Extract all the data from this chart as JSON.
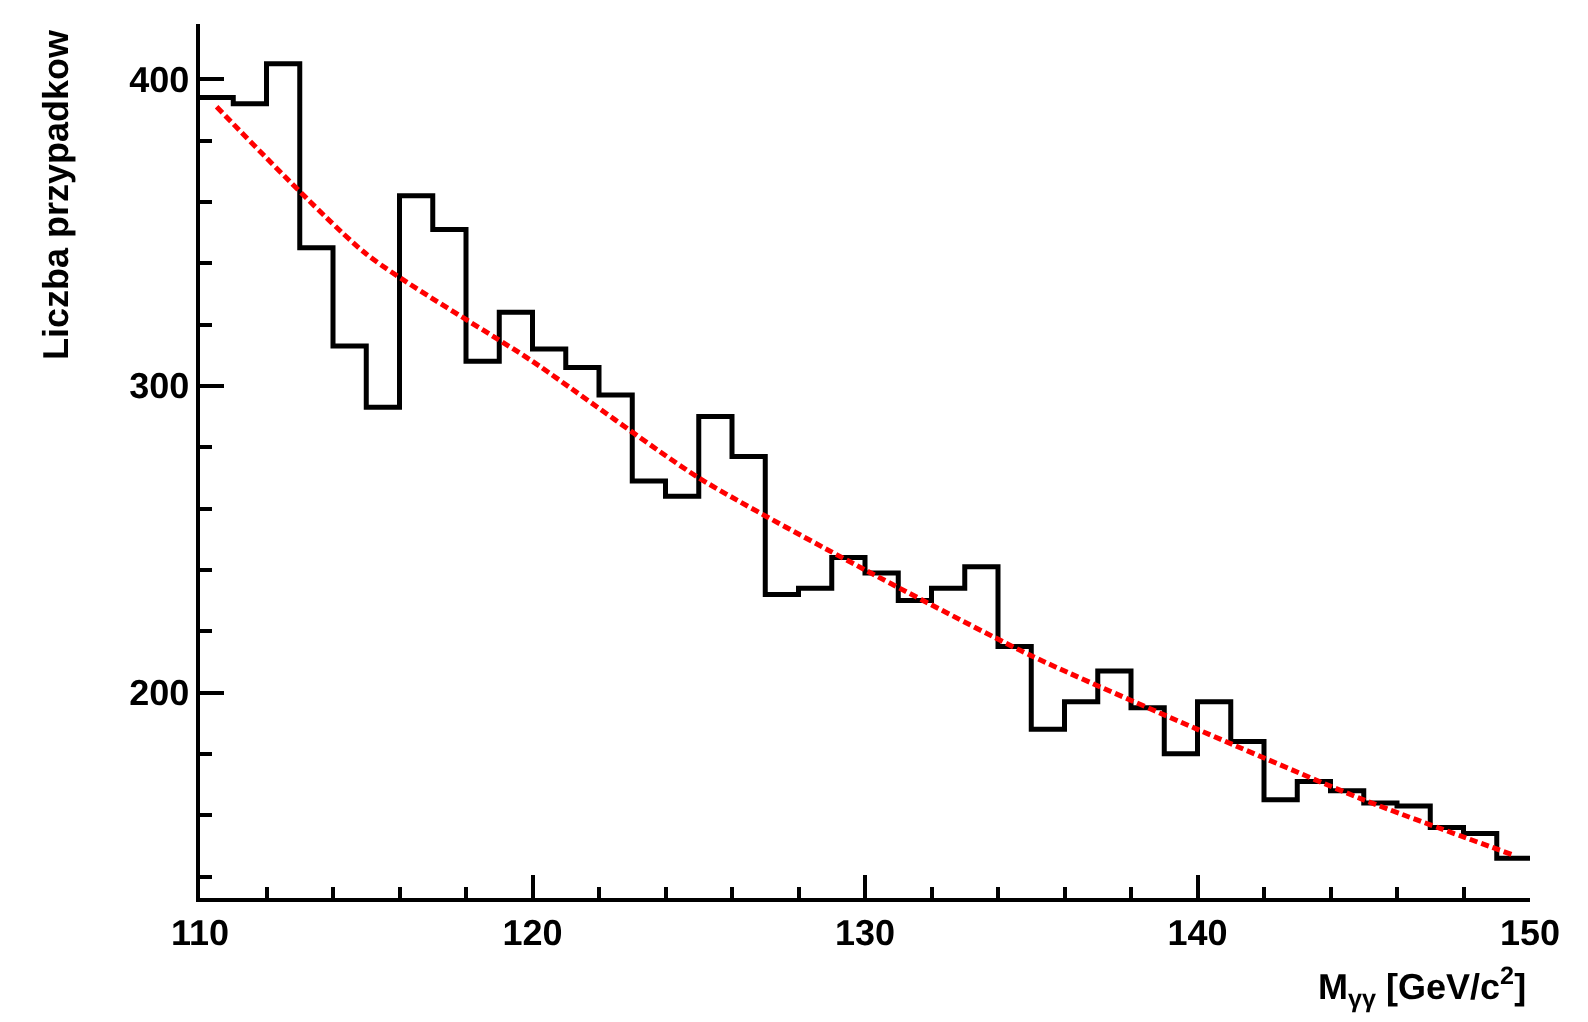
{
  "chart_data": {
    "type": "histogram",
    "xlabel": "M$_{γγ}$ [GeV/c$^{2}$]",
    "ylabel": "Liczba przypadkow",
    "color": "#000000",
    "bins": [
      110,
      111,
      112,
      113,
      114,
      115,
      116,
      117,
      118,
      119,
      120,
      121,
      122,
      123,
      124,
      125,
      126,
      127,
      128,
      129,
      130,
      131,
      132,
      133,
      134,
      135,
      136,
      137,
      138,
      139,
      140,
      141,
      142,
      143,
      144,
      145,
      146,
      147,
      148,
      149,
      150
    ],
    "values": [
      394,
      392,
      405,
      345,
      313,
      293,
      362,
      351,
      308,
      324,
      312,
      306,
      297,
      269,
      264,
      290,
      277,
      232,
      234,
      244,
      239,
      230,
      234,
      241,
      215,
      188,
      197,
      207,
      195,
      180,
      197,
      184,
      165,
      171,
      168,
      164,
      163,
      156,
      154,
      146
    ],
    "series": [
      {
        "type": "line",
        "color": "#ff0000",
        "line_style": "dotted",
        "marker": "none",
        "x": [
          110.5,
          115,
          120,
          125,
          130,
          135,
          140,
          145,
          149.5
        ],
        "values": [
          391,
          343,
          308,
          270,
          240,
          212,
          188,
          165,
          147
        ]
      }
    ],
    "xlim": [
      110,
      150
    ],
    "ylim": [
      133,
      418
    ],
    "xticks": [
      110,
      {
        "value": 112,
        "label": null
      },
      {
        "value": 114,
        "label": null
      },
      {
        "value": 116,
        "label": null
      },
      {
        "value": 118,
        "label": null
      },
      120,
      {
        "value": 122,
        "label": null
      },
      {
        "value": 124,
        "label": null
      },
      {
        "value": 126,
        "label": null
      },
      {
        "value": 128,
        "label": null
      },
      130,
      {
        "value": 132,
        "label": null
      },
      {
        "value": 134,
        "label": null
      },
      {
        "value": 136,
        "label": null
      },
      {
        "value": 138,
        "label": null
      },
      140,
      {
        "value": 142,
        "label": null
      },
      {
        "value": 144,
        "label": null
      },
      {
        "value": 146,
        "label": null
      },
      {
        "value": 148,
        "label": null
      },
      150
    ],
    "yticks": [
      {
        "value": 140,
        "label": null
      },
      {
        "value": 160,
        "label": null
      },
      {
        "value": 180,
        "label": null
      },
      200,
      {
        "value": 220,
        "label": null
      },
      {
        "value": 240,
        "label": null
      },
      {
        "value": 260,
        "label": null
      },
      {
        "value": 280,
        "label": null
      },
      300,
      {
        "value": 320,
        "label": null
      },
      {
        "value": 340,
        "label": null
      },
      {
        "value": 360,
        "label": null
      },
      {
        "value": 380,
        "label": null
      },
      400
    ],
    "grid": false
  }
}
